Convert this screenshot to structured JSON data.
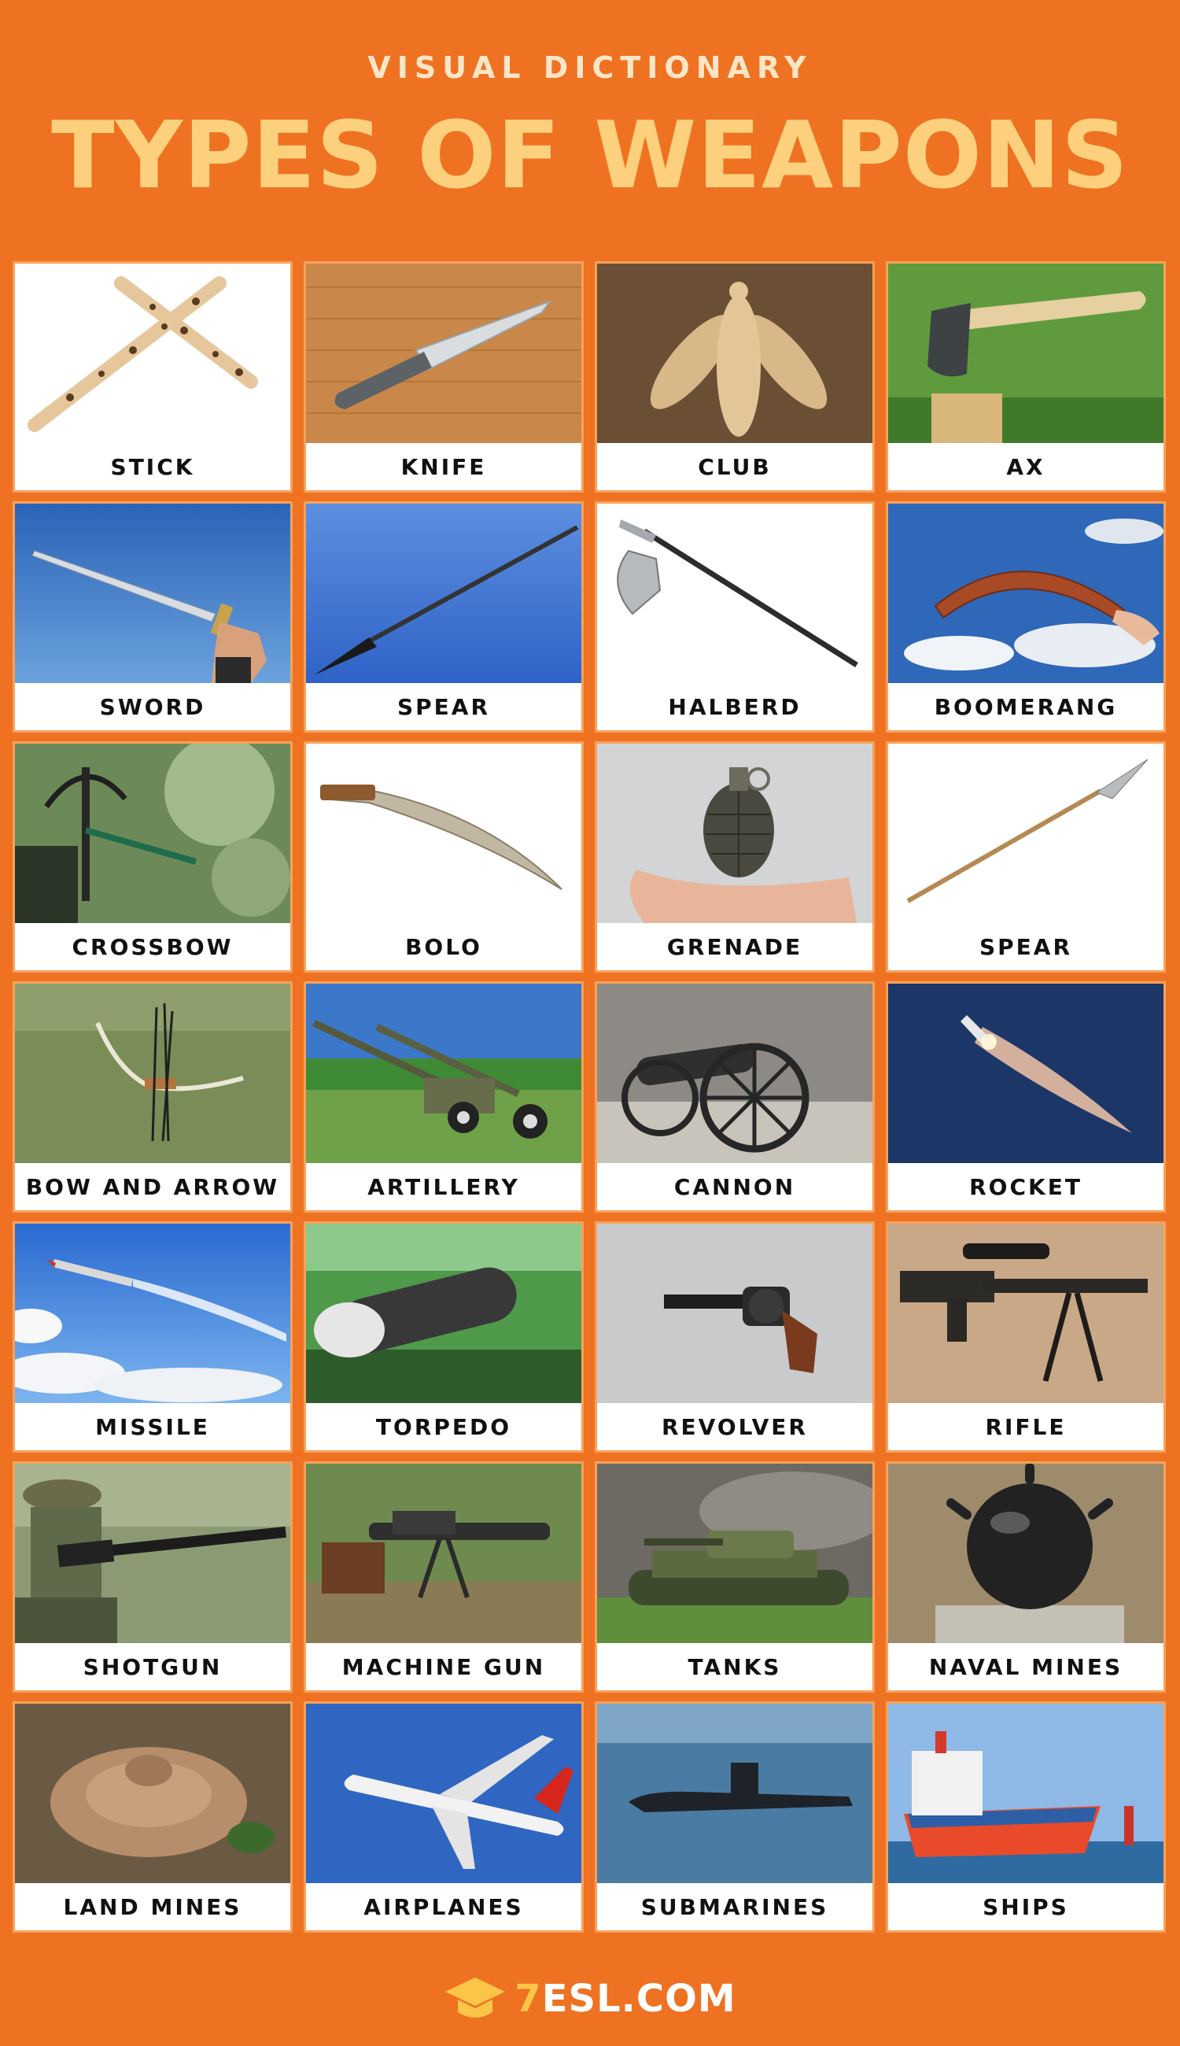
{
  "header": {
    "subtitle": "VISUAL DICTIONARY",
    "title": "TYPES OF WEAPONS"
  },
  "items": [
    {
      "label": "STICK",
      "icon": "stick-icon"
    },
    {
      "label": "KNIFE",
      "icon": "knife-icon"
    },
    {
      "label": "CLUB",
      "icon": "club-icon"
    },
    {
      "label": "AX",
      "icon": "ax-icon"
    },
    {
      "label": "SWORD",
      "icon": "sword-icon"
    },
    {
      "label": "SPEAR",
      "icon": "spear-icon"
    },
    {
      "label": "HALBERD",
      "icon": "halberd-icon"
    },
    {
      "label": "BOOMERANG",
      "icon": "boomerang-icon"
    },
    {
      "label": "CROSSBOW",
      "icon": "crossbow-icon"
    },
    {
      "label": "BOLO",
      "icon": "bolo-icon"
    },
    {
      "label": "GRENADE",
      "icon": "grenade-icon"
    },
    {
      "label": "SPEAR",
      "icon": "spear-icon"
    },
    {
      "label": "BOW AND ARROW",
      "icon": "bow-and-arrow-icon"
    },
    {
      "label": "ARTILLERY",
      "icon": "artillery-icon"
    },
    {
      "label": "CANNON",
      "icon": "cannon-icon"
    },
    {
      "label": "ROCKET",
      "icon": "rocket-icon"
    },
    {
      "label": "MISSILE",
      "icon": "missile-icon"
    },
    {
      "label": "TORPEDO",
      "icon": "torpedo-icon"
    },
    {
      "label": "REVOLVER",
      "icon": "revolver-icon"
    },
    {
      "label": "RIFLE",
      "icon": "rifle-icon"
    },
    {
      "label": "SHOTGUN",
      "icon": "shotgun-icon"
    },
    {
      "label": "MACHINE GUN",
      "icon": "machine-gun-icon"
    },
    {
      "label": "TANKS",
      "icon": "tank-icon"
    },
    {
      "label": "NAVAL MINES",
      "icon": "naval-mine-icon"
    },
    {
      "label": "LAND MINES",
      "icon": "land-mine-icon"
    },
    {
      "label": "AIRPLANES",
      "icon": "airplane-icon"
    },
    {
      "label": "SUBMARINES",
      "icon": "submarine-icon"
    },
    {
      "label": "SHIPS",
      "icon": "ship-icon"
    }
  ],
  "footer": {
    "logo_prefix": "7",
    "logo_main": "ESL.COM"
  },
  "colors": {
    "background": "#ee7222",
    "title": "#fcd07c",
    "subtitle": "#fde6c6",
    "logo_accent": "#fcc547"
  }
}
